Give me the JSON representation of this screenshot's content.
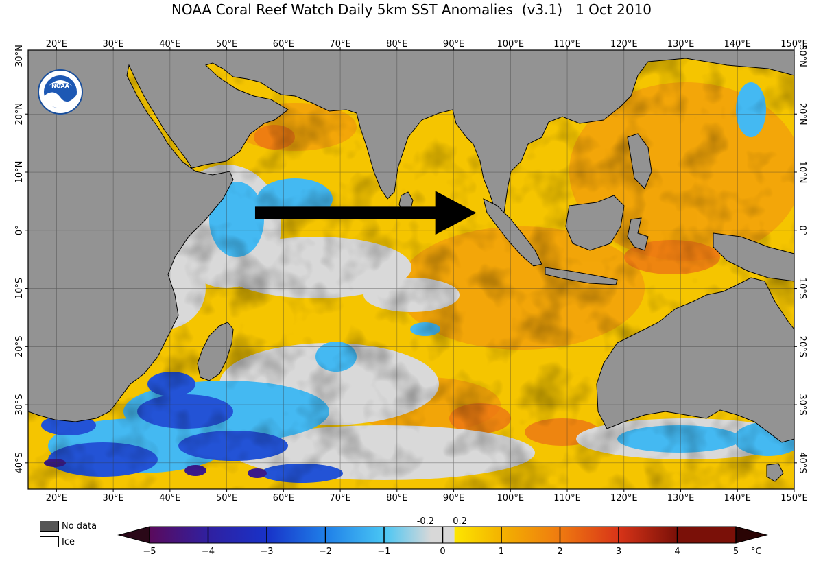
{
  "title": "NOAA Coral Reef Watch Daily 5km SST Anomalies  (v3.1)   1 Oct 2010",
  "logo": {
    "text": "NOAA",
    "icon": "noaa-logo-icon"
  },
  "map": {
    "lon_labels": [
      "20°E",
      "30°E",
      "40°E",
      "50°E",
      "60°E",
      "70°E",
      "80°E",
      "90°E",
      "100°E",
      "110°E",
      "120°E",
      "130°E",
      "140°E",
      "150°E"
    ],
    "lon_values": [
      20,
      30,
      40,
      50,
      60,
      70,
      80,
      90,
      100,
      110,
      120,
      130,
      140,
      150
    ],
    "lat_labels": [
      "30°N",
      "20°N",
      "10°N",
      "0°",
      "10°S",
      "20°S",
      "30°S",
      "40°S"
    ],
    "lat_values": [
      30,
      20,
      10,
      0,
      -10,
      -20,
      -30,
      -40
    ],
    "lon_range": [
      15,
      150
    ],
    "lat_range": [
      -44.5,
      31
    ],
    "arrow": {
      "from_lon": 55,
      "to_lon": 94,
      "lat": 3,
      "icon": "arrow-right-icon"
    },
    "colors": {
      "land": "#939393",
      "ocean_warm": "#f5c400",
      "ocean_hot": "#f08a10",
      "neutral": "#d8d8d8",
      "cool": "#45b9f2",
      "cold": "#2255d8"
    }
  },
  "legend": {
    "nodata_label": "No data",
    "ice_label": "Ice",
    "nodata_color": "#555555",
    "ice_color": "#ffffff"
  },
  "colorbar": {
    "ticks": [
      "−5",
      "−4",
      "−3",
      "−2",
      "−1",
      "0",
      "1",
      "2",
      "3",
      "4",
      "5"
    ],
    "minor_ticks": [
      "-0.2",
      "0.2"
    ],
    "unit": "°C",
    "colors": [
      "#2a0818",
      "#5a0a5c",
      "#3020a0",
      "#1832c8",
      "#1f7fe8",
      "#49c6f4",
      "#d8d8d8",
      "#fde600",
      "#f3b200",
      "#ef7a10",
      "#d83418",
      "#7a1008",
      "#2a0404"
    ]
  }
}
